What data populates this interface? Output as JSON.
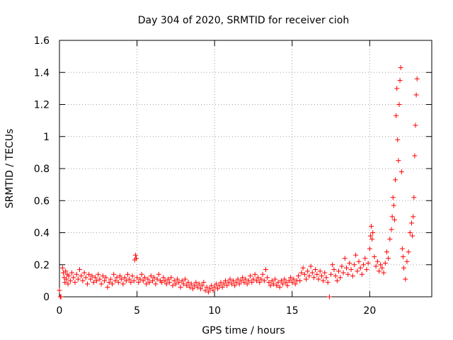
{
  "chart_data": {
    "type": "scatter",
    "title": "Day 304 of 2020, SRMTID for receiver cioh",
    "xlabel": "GPS time / hours",
    "ylabel": "SRMTID / TECUs",
    "xlim": [
      0,
      24
    ],
    "ylim": [
      0,
      1.6
    ],
    "x_ticks": [
      0,
      5,
      10,
      15,
      20
    ],
    "x_tick_labels": [
      "0",
      "5",
      "10",
      "15",
      "20"
    ],
    "y_ticks": [
      0,
      0.2,
      0.4,
      0.6,
      0.8,
      1.0,
      1.2,
      1.4,
      1.6
    ],
    "y_tick_labels": [
      "0",
      "0.2",
      "0.4",
      "0.6",
      "0.8",
      "1",
      "1.2",
      "1.4",
      "1.6"
    ],
    "grid": true,
    "marker": "+",
    "marker_color": "#ff0000",
    "series": [
      {
        "name": "SRMTID",
        "points": [
          [
            0.0,
            0.04
          ],
          [
            0.05,
            0.0
          ],
          [
            0.1,
            0.0
          ],
          [
            0.2,
            0.18
          ],
          [
            0.25,
            0.15
          ],
          [
            0.3,
            0.12
          ],
          [
            0.35,
            0.09
          ],
          [
            0.4,
            0.16
          ],
          [
            0.45,
            0.11
          ],
          [
            0.5,
            0.14
          ],
          [
            0.55,
            0.08
          ],
          [
            0.6,
            0.13
          ],
          [
            0.7,
            0.1
          ],
          [
            0.8,
            0.15
          ],
          [
            0.9,
            0.12
          ],
          [
            1.0,
            0.09
          ],
          [
            1.1,
            0.14
          ],
          [
            1.2,
            0.11
          ],
          [
            1.3,
            0.17
          ],
          [
            1.4,
            0.13
          ],
          [
            1.5,
            0.1
          ],
          [
            1.6,
            0.15
          ],
          [
            1.7,
            0.12
          ],
          [
            1.8,
            0.08
          ],
          [
            1.9,
            0.14
          ],
          [
            2.0,
            0.11
          ],
          [
            2.1,
            0.13
          ],
          [
            2.2,
            0.09
          ],
          [
            2.3,
            0.12
          ],
          [
            2.4,
            0.1
          ],
          [
            2.5,
            0.14
          ],
          [
            2.6,
            0.11
          ],
          [
            2.7,
            0.08
          ],
          [
            2.8,
            0.13
          ],
          [
            2.9,
            0.1
          ],
          [
            3.0,
            0.12
          ],
          [
            3.1,
            0.06
          ],
          [
            3.2,
            0.09
          ],
          [
            3.3,
            0.11
          ],
          [
            3.4,
            0.08
          ],
          [
            3.5,
            0.14
          ],
          [
            3.6,
            0.1
          ],
          [
            3.7,
            0.12
          ],
          [
            3.8,
            0.09
          ],
          [
            3.9,
            0.13
          ],
          [
            4.0,
            0.11
          ],
          [
            4.1,
            0.08
          ],
          [
            4.2,
            0.12
          ],
          [
            4.3,
            0.1
          ],
          [
            4.4,
            0.14
          ],
          [
            4.5,
            0.11
          ],
          [
            4.6,
            0.09
          ],
          [
            4.7,
            0.13
          ],
          [
            4.8,
            0.1
          ],
          [
            4.85,
            0.23
          ],
          [
            4.9,
            0.26
          ],
          [
            4.95,
            0.24
          ],
          [
            5.0,
            0.12
          ],
          [
            5.1,
            0.09
          ],
          [
            5.2,
            0.11
          ],
          [
            5.3,
            0.14
          ],
          [
            5.4,
            0.1
          ],
          [
            5.5,
            0.12
          ],
          [
            5.6,
            0.08
          ],
          [
            5.7,
            0.11
          ],
          [
            5.8,
            0.09
          ],
          [
            5.9,
            0.13
          ],
          [
            6.0,
            0.1
          ],
          [
            6.1,
            0.12
          ],
          [
            6.2,
            0.08
          ],
          [
            6.3,
            0.11
          ],
          [
            6.4,
            0.14
          ],
          [
            6.5,
            0.1
          ],
          [
            6.6,
            0.09
          ],
          [
            6.7,
            0.12
          ],
          [
            6.8,
            0.1
          ],
          [
            6.9,
            0.08
          ],
          [
            7.0,
            0.11
          ],
          [
            7.1,
            0.09
          ],
          [
            7.2,
            0.12
          ],
          [
            7.3,
            0.07
          ],
          [
            7.4,
            0.1
          ],
          [
            7.5,
            0.08
          ],
          [
            7.6,
            0.11
          ],
          [
            7.7,
            0.09
          ],
          [
            7.8,
            0.06
          ],
          [
            7.9,
            0.1
          ],
          [
            8.0,
            0.08
          ],
          [
            8.1,
            0.11
          ],
          [
            8.2,
            0.07
          ],
          [
            8.3,
            0.09
          ],
          [
            8.4,
            0.06
          ],
          [
            8.5,
            0.08
          ],
          [
            8.6,
            0.05
          ],
          [
            8.7,
            0.07
          ],
          [
            8.8,
            0.09
          ],
          [
            8.9,
            0.06
          ],
          [
            9.0,
            0.08
          ],
          [
            9.1,
            0.05
          ],
          [
            9.2,
            0.07
          ],
          [
            9.3,
            0.09
          ],
          [
            9.4,
            0.04
          ],
          [
            9.5,
            0.06
          ],
          [
            9.6,
            0.03
          ],
          [
            9.7,
            0.05
          ],
          [
            9.8,
            0.07
          ],
          [
            9.9,
            0.04
          ],
          [
            10.0,
            0.06
          ],
          [
            10.1,
            0.08
          ],
          [
            10.2,
            0.05
          ],
          [
            10.3,
            0.07
          ],
          [
            10.4,
            0.09
          ],
          [
            10.5,
            0.06
          ],
          [
            10.6,
            0.08
          ],
          [
            10.7,
            0.1
          ],
          [
            10.8,
            0.07
          ],
          [
            10.9,
            0.09
          ],
          [
            11.0,
            0.11
          ],
          [
            11.1,
            0.08
          ],
          [
            11.2,
            0.1
          ],
          [
            11.3,
            0.07
          ],
          [
            11.4,
            0.09
          ],
          [
            11.5,
            0.11
          ],
          [
            11.6,
            0.08
          ],
          [
            11.7,
            0.1
          ],
          [
            11.8,
            0.12
          ],
          [
            11.9,
            0.09
          ],
          [
            12.0,
            0.11
          ],
          [
            12.1,
            0.08
          ],
          [
            12.2,
            0.1
          ],
          [
            12.3,
            0.13
          ],
          [
            12.4,
            0.09
          ],
          [
            12.5,
            0.11
          ],
          [
            12.6,
            0.14
          ],
          [
            12.7,
            0.1
          ],
          [
            12.8,
            0.12
          ],
          [
            12.9,
            0.09
          ],
          [
            13.0,
            0.11
          ],
          [
            13.1,
            0.14
          ],
          [
            13.2,
            0.1
          ],
          [
            13.3,
            0.17
          ],
          [
            13.4,
            0.12
          ],
          [
            13.5,
            0.09
          ],
          [
            13.6,
            0.07
          ],
          [
            13.7,
            0.1
          ],
          [
            13.8,
            0.08
          ],
          [
            13.9,
            0.11
          ],
          [
            14.0,
            0.07
          ],
          [
            14.1,
            0.09
          ],
          [
            14.2,
            0.06
          ],
          [
            14.3,
            0.1
          ],
          [
            14.4,
            0.08
          ],
          [
            14.5,
            0.11
          ],
          [
            14.6,
            0.09
          ],
          [
            14.7,
            0.07
          ],
          [
            14.8,
            0.1
          ],
          [
            14.9,
            0.12
          ],
          [
            15.0,
            0.09
          ],
          [
            15.1,
            0.11
          ],
          [
            15.2,
            0.08
          ],
          [
            15.3,
            0.1
          ],
          [
            15.4,
            0.13
          ],
          [
            15.5,
            0.1
          ],
          [
            15.6,
            0.15
          ],
          [
            15.7,
            0.18
          ],
          [
            15.8,
            0.14
          ],
          [
            15.9,
            0.11
          ],
          [
            16.0,
            0.16
          ],
          [
            16.1,
            0.13
          ],
          [
            16.2,
            0.19
          ],
          [
            16.3,
            0.15
          ],
          [
            16.4,
            0.12
          ],
          [
            16.5,
            0.17
          ],
          [
            16.6,
            0.14
          ],
          [
            16.7,
            0.11
          ],
          [
            16.8,
            0.16
          ],
          [
            16.9,
            0.13
          ],
          [
            17.0,
            0.1
          ],
          [
            17.1,
            0.15
          ],
          [
            17.2,
            0.12
          ],
          [
            17.3,
            0.09
          ],
          [
            17.4,
            0.0
          ],
          [
            17.5,
            0.14
          ],
          [
            17.6,
            0.2
          ],
          [
            17.7,
            0.17
          ],
          [
            17.8,
            0.13
          ],
          [
            17.9,
            0.1
          ],
          [
            18.0,
            0.16
          ],
          [
            18.1,
            0.12
          ],
          [
            18.2,
            0.19
          ],
          [
            18.3,
            0.15
          ],
          [
            18.4,
            0.24
          ],
          [
            18.5,
            0.18
          ],
          [
            18.6,
            0.14
          ],
          [
            18.7,
            0.21
          ],
          [
            18.8,
            0.17
          ],
          [
            18.9,
            0.13
          ],
          [
            19.0,
            0.2
          ],
          [
            19.1,
            0.26
          ],
          [
            19.2,
            0.16
          ],
          [
            19.3,
            0.22
          ],
          [
            19.4,
            0.18
          ],
          [
            19.5,
            0.14
          ],
          [
            19.6,
            0.2
          ],
          [
            19.7,
            0.24
          ],
          [
            19.8,
            0.17
          ],
          [
            19.9,
            0.21
          ],
          [
            20.0,
            0.3
          ],
          [
            20.05,
            0.38
          ],
          [
            20.1,
            0.44
          ],
          [
            20.15,
            0.36
          ],
          [
            20.2,
            0.4
          ],
          [
            20.3,
            0.25
          ],
          [
            20.4,
            0.19
          ],
          [
            20.5,
            0.22
          ],
          [
            20.6,
            0.16
          ],
          [
            20.7,
            0.2
          ],
          [
            20.8,
            0.18
          ],
          [
            20.9,
            0.15
          ],
          [
            21.0,
            0.21
          ],
          [
            21.1,
            0.28
          ],
          [
            21.2,
            0.24
          ],
          [
            21.3,
            0.36
          ],
          [
            21.4,
            0.42
          ],
          [
            21.45,
            0.5
          ],
          [
            21.5,
            0.62
          ],
          [
            21.55,
            0.57
          ],
          [
            21.6,
            0.48
          ],
          [
            21.65,
            0.73
          ],
          [
            21.7,
            1.13
          ],
          [
            21.75,
            1.3
          ],
          [
            21.8,
            0.98
          ],
          [
            21.85,
            0.85
          ],
          [
            21.9,
            1.2
          ],
          [
            21.95,
            1.35
          ],
          [
            22.0,
            1.43
          ],
          [
            22.05,
            0.78
          ],
          [
            22.1,
            0.3
          ],
          [
            22.15,
            0.25
          ],
          [
            22.2,
            0.18
          ],
          [
            22.3,
            0.11
          ],
          [
            22.4,
            0.22
          ],
          [
            22.5,
            0.28
          ],
          [
            22.6,
            0.4
          ],
          [
            22.7,
            0.46
          ],
          [
            22.75,
            0.38
          ],
          [
            22.8,
            0.5
          ],
          [
            22.85,
            0.62
          ],
          [
            22.9,
            0.88
          ],
          [
            22.95,
            1.07
          ],
          [
            23.0,
            1.26
          ],
          [
            23.05,
            1.36
          ]
        ]
      }
    ]
  }
}
